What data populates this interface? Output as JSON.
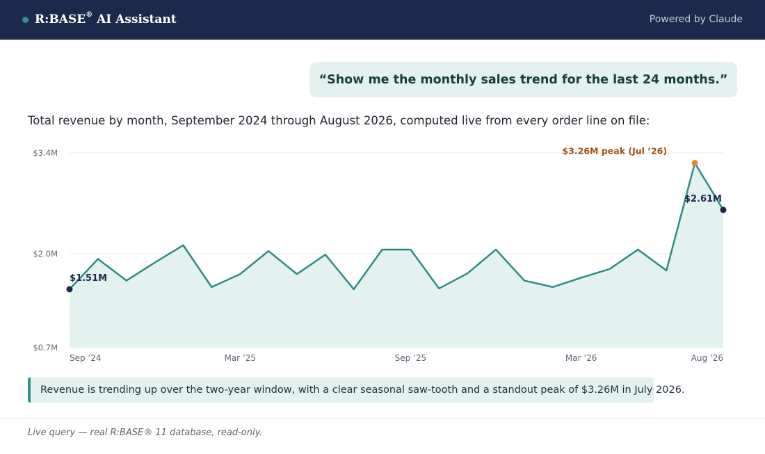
{
  "header": {
    "brand_name": "R:BASE",
    "brand_mark": "®",
    "brand_suffix": " AI Assistant",
    "powered_by": "Powered by Claude",
    "status_dot_color": "#2f8f89"
  },
  "user_query": "“Show me the monthly sales trend for the last 24 months.”",
  "intro_text": "Total revenue by month, September 2024 through August 2026, computed live from every order line on file:",
  "chart_data": {
    "type": "area",
    "title": "",
    "xlabel": "",
    "ylabel": "",
    "unit": "$M",
    "x": [
      "Sep ’24",
      "Oct ’24",
      "Nov ’24",
      "Dec ’24",
      "Jan ’25",
      "Feb ’25",
      "Mar ’25",
      "Apr ’25",
      "May ’25",
      "Jun ’25",
      "Jul ’25",
      "Aug ’25",
      "Sep ’25",
      "Oct ’25",
      "Nov ’25",
      "Dec ’25",
      "Jan ’26",
      "Feb ’26",
      "Mar ’26",
      "Apr ’26",
      "May ’26",
      "Jun ’26",
      "Jul ’26",
      "Aug ’26"
    ],
    "series": [
      {
        "values": [
          1.51,
          1.93,
          1.63,
          1.88,
          2.12,
          1.54,
          1.72,
          2.04,
          1.72,
          1.99,
          1.51,
          2.06,
          2.06,
          1.52,
          1.73,
          2.06,
          1.63,
          1.54,
          1.67,
          1.79,
          2.06,
          1.77,
          3.26,
          2.61
        ]
      }
    ],
    "y_ticks": [
      "$0.7M",
      "$2.0M",
      "$3.4M"
    ],
    "y_tick_values": [
      0.7,
      2.0,
      3.4
    ],
    "x_ticks": [
      {
        "label": "Sep ’24",
        "index": 0
      },
      {
        "label": "Mar ’25",
        "index": 6
      },
      {
        "label": "Sep ’25",
        "index": 12
      },
      {
        "label": "Mar ’26",
        "index": 18
      },
      {
        "label": "Aug ’26",
        "index": 23
      }
    ],
    "ylim": [
      0.7,
      3.4
    ],
    "grid": true,
    "annotations": [
      {
        "label": "$1.51M",
        "index": 0
      },
      {
        "label": "$3.26M peak (Jul ’26)",
        "index": 22
      },
      {
        "label": "$2.61M",
        "index": 23
      }
    ],
    "colors": {
      "line": "#2e8a85",
      "fill": "#e3f1ef",
      "grid": "#e5e8ec",
      "peak": "#e08a2c",
      "endpoint": "#1b2a4a",
      "peak_label": "#a0500f",
      "tick_label": "#5a6475"
    }
  },
  "insight": "Revenue is trending up over the two-year window, with a clear seasonal saw-tooth and a standout peak of $3.26M in July 2026.",
  "footer": "Live query — real R:BASE® 11 database, read-only."
}
